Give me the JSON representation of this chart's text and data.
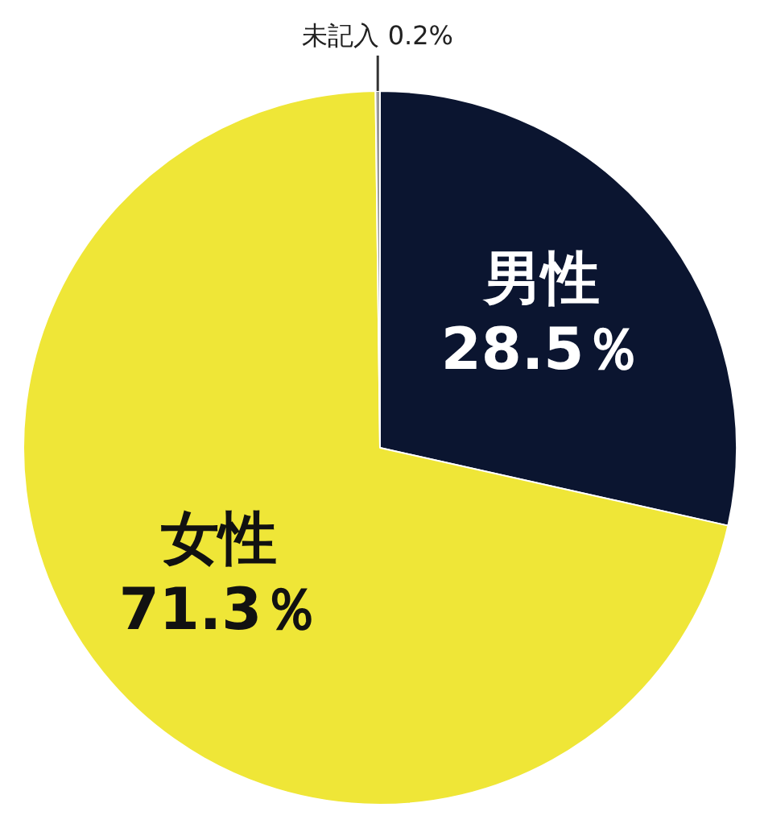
{
  "chart_data": {
    "type": "pie",
    "categories": [
      "男性",
      "女性",
      "未記入"
    ],
    "values": [
      28.5,
      71.3,
      0.2
    ],
    "value_labels": [
      "28.5％",
      "71.3％",
      "0.2%"
    ],
    "colors": [
      "#0b1530",
      "#efe637",
      "#9a9a9a"
    ],
    "legend": false
  }
}
